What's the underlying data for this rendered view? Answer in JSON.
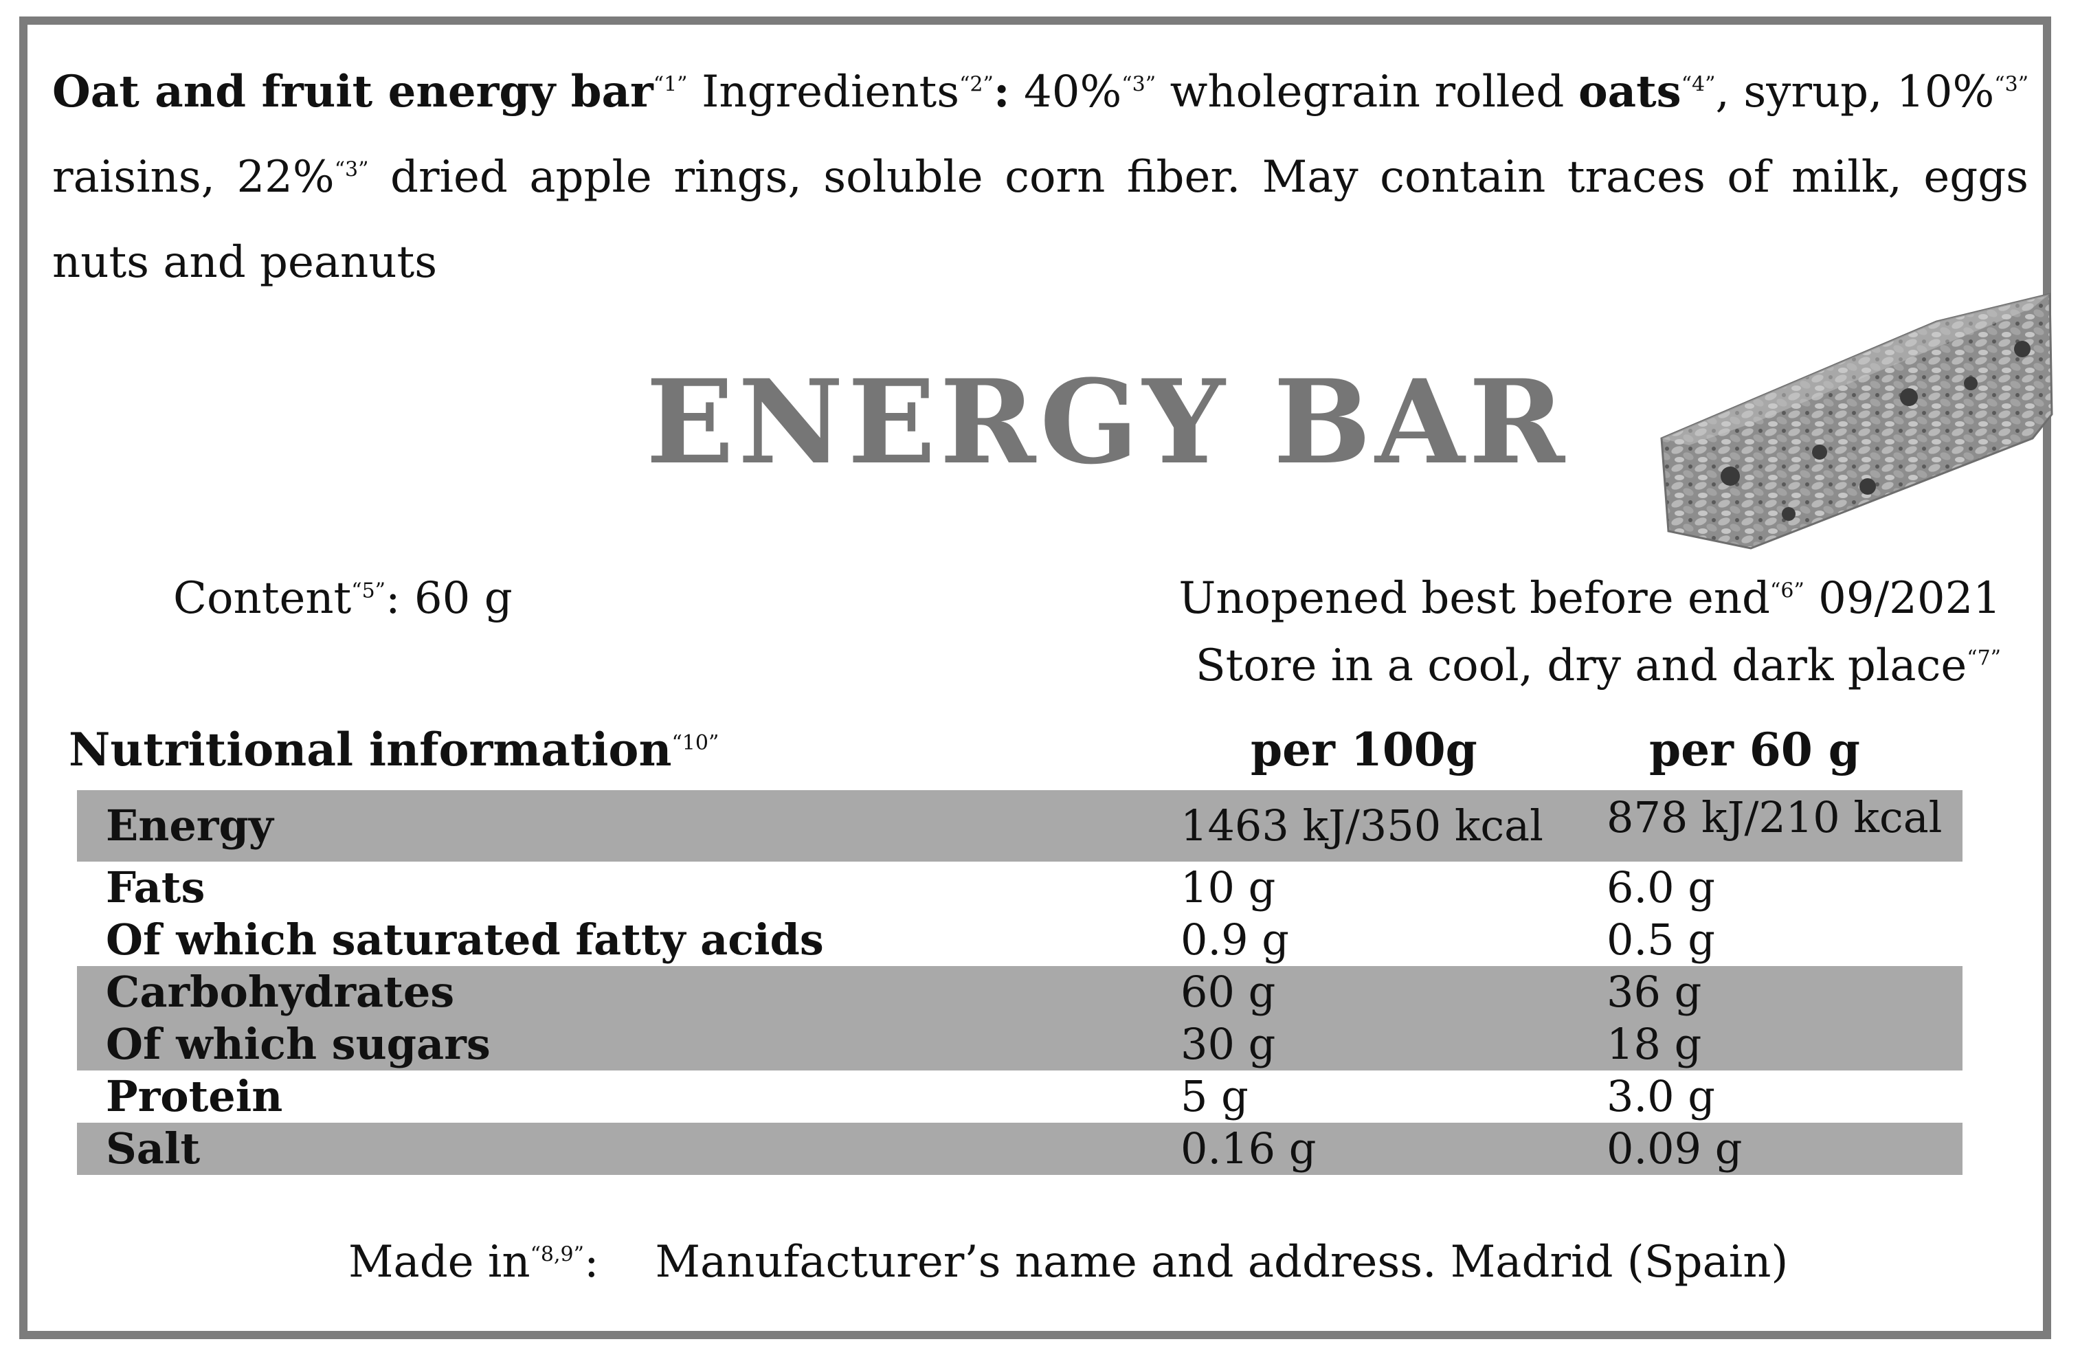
{
  "ingredients": {
    "product_name": "Oat and fruit energy bar",
    "ref1": "“1”",
    "ingredients_label": "Ingredients",
    "ref2": "“2”",
    "colon": ":",
    "pct_oats": "40%",
    "ref3a": "“3”",
    "text_oats_pre": "wholegrain rolled",
    "oats": "oats",
    "ref4": "“4”",
    "text_after_oats": ", syrup, 10%",
    "ref3b": "“3”",
    "text_raisins": "raisins, 22%",
    "ref3c": "“3”",
    "text_rest": "dried apple rings, soluble corn fiber. May contain traces of milk, eggs nuts and peanuts"
  },
  "title": "ENERGY BAR",
  "content": {
    "label": "Content",
    "ref": "“5”",
    "value": ": 60 g"
  },
  "best_before": {
    "label": "Unopened best before end",
    "ref": "“6”",
    "value": "09/2021"
  },
  "storage": {
    "text": "Store in a cool, dry and dark place",
    "ref": "“7”"
  },
  "nutrition": {
    "title": "Nutritional information",
    "ref": "“10”",
    "col1": "per 100g",
    "col2": "per 60 g",
    "rows": [
      {
        "label": "Energy",
        "per100": "1463 kJ/350 kcal",
        "per60": "878 kJ/210 kcal"
      },
      {
        "label": "Fats",
        "per100": "10 g",
        "per60": "6.0 g"
      },
      {
        "label": "Of which saturated fatty acids",
        "per100": "0.9 g",
        "per60": "0.5 g"
      },
      {
        "label": "Carbohydrates",
        "per100": "60 g",
        "per60": "36 g"
      },
      {
        "label": "Of which sugars",
        "per100": "30 g",
        "per60": "18 g"
      },
      {
        "label": "Protein",
        "per100": "5 g",
        "per60": "3.0 g"
      },
      {
        "label": "Salt",
        "per100": "0.16 g",
        "per60": "0.09 g"
      }
    ]
  },
  "made_in": {
    "label": "Made in",
    "ref": "“8,9”",
    "colon": ":",
    "address": "Manufacturer’s name and address. Madrid (Spain)"
  },
  "colors": {
    "frame": "#7c7c7c",
    "title": "#767676",
    "row_shade": "#a9a9a9"
  }
}
